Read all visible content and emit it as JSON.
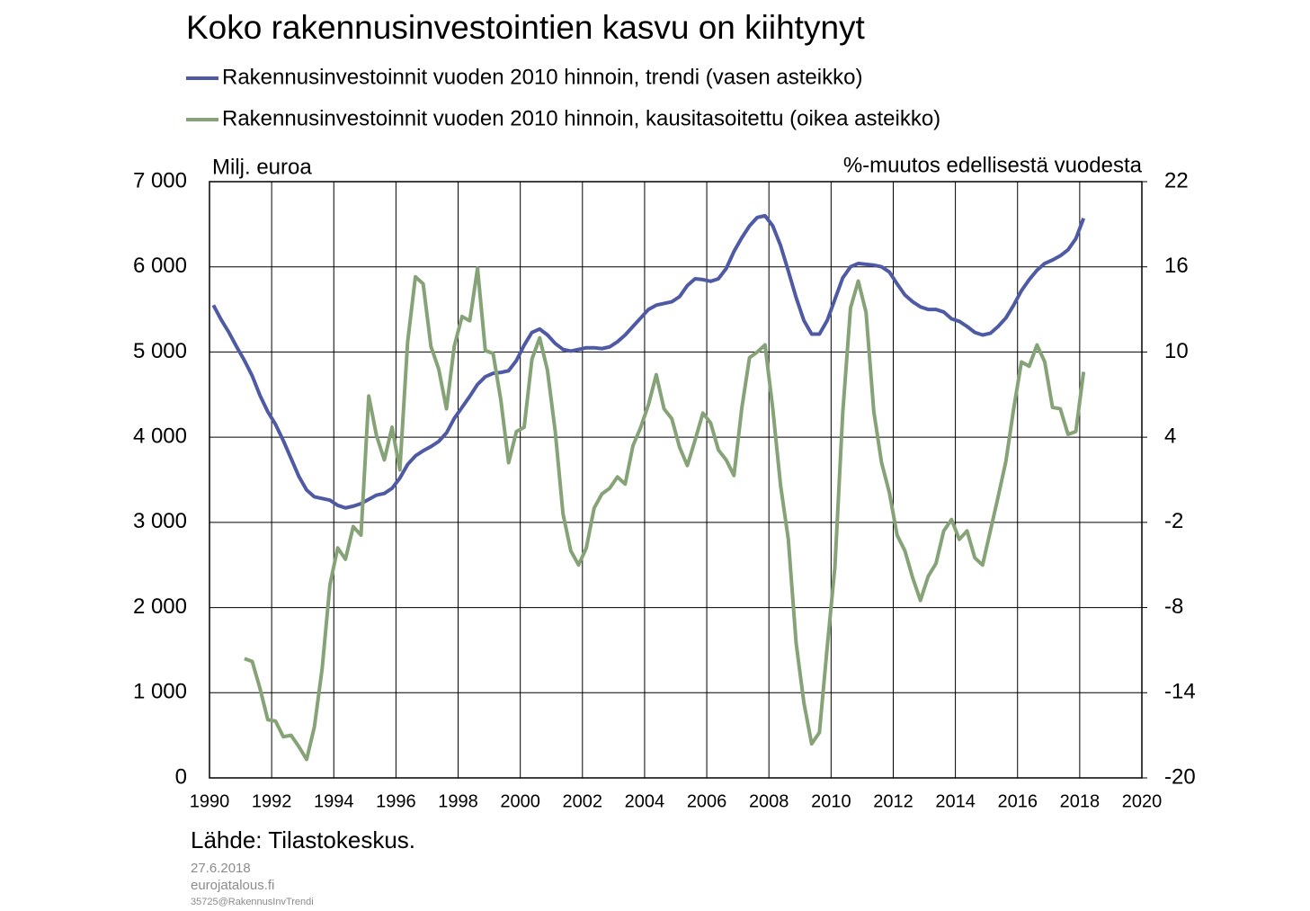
{
  "chart_data": {
    "type": "line",
    "title": "Koko rakennusinvestointien kasvu on kiihtynyt",
    "y_label": "Milj. euroa",
    "y2_label": "%-muutos edellisestä vuodesta",
    "source": "Lähde: Tilastokeskus.",
    "footer": [
      "27.6.2018",
      "eurojatalous.fi",
      "35725@RakennusInvTrendi"
    ],
    "xlim": [
      1990,
      2020
    ],
    "xticks": [
      1990,
      1992,
      1994,
      1996,
      1998,
      2000,
      2002,
      2004,
      2006,
      2008,
      2010,
      2012,
      2014,
      2016,
      2018,
      2020
    ],
    "ylim": [
      0,
      7000
    ],
    "yticks": [
      0,
      {
        "value": 1000,
        "label": "1 000"
      },
      {
        "value": 2000,
        "label": "2 000"
      },
      {
        "value": 3000,
        "label": "3 000"
      },
      {
        "value": 4000,
        "label": "4 000"
      },
      {
        "value": 5000,
        "label": "5 000"
      },
      {
        "value": 6000,
        "label": "6 000"
      },
      {
        "value": 7000,
        "label": "7 000"
      }
    ],
    "y2lim": [
      -20,
      22
    ],
    "y2ticks": [
      -20,
      -14,
      -8,
      -2,
      4,
      10,
      16,
      22
    ],
    "grid": true,
    "x": [
      1990.125,
      1990.375,
      1990.625,
      1990.875,
      1991.125,
      1991.375,
      1991.625,
      1991.875,
      1992.125,
      1992.375,
      1992.625,
      1992.875,
      1993.125,
      1993.375,
      1993.625,
      1993.875,
      1994.125,
      1994.375,
      1994.625,
      1994.875,
      1995.125,
      1995.375,
      1995.625,
      1995.875,
      1996.125,
      1996.375,
      1996.625,
      1996.875,
      1997.125,
      1997.375,
      1997.625,
      1997.875,
      1998.125,
      1998.375,
      1998.625,
      1998.875,
      1999.125,
      1999.375,
      1999.625,
      1999.875,
      2000.125,
      2000.375,
      2000.625,
      2000.875,
      2001.125,
      2001.375,
      2001.625,
      2001.875,
      2002.125,
      2002.375,
      2002.625,
      2002.875,
      2003.125,
      2003.375,
      2003.625,
      2003.875,
      2004.125,
      2004.375,
      2004.625,
      2004.875,
      2005.125,
      2005.375,
      2005.625,
      2005.875,
      2006.125,
      2006.375,
      2006.625,
      2006.875,
      2007.125,
      2007.375,
      2007.625,
      2007.875,
      2008.125,
      2008.375,
      2008.625,
      2008.875,
      2009.125,
      2009.375,
      2009.625,
      2009.875,
      2010.125,
      2010.375,
      2010.625,
      2010.875,
      2011.125,
      2011.375,
      2011.625,
      2011.875,
      2012.125,
      2012.375,
      2012.625,
      2012.875,
      2013.125,
      2013.375,
      2013.625,
      2013.875,
      2014.125,
      2014.375,
      2014.625,
      2014.875,
      2015.125,
      2015.375,
      2015.625,
      2015.875,
      2016.125,
      2016.375,
      2016.625,
      2016.875,
      2017.125,
      2017.375,
      2017.625,
      2017.875,
      2018.125
    ],
    "series": [
      {
        "name": "Rakennusinvestoinnit vuoden 2010 hinnoin, trendi (vasen asteikko)",
        "color": "#4f5aa5",
        "axis": "y",
        "values": [
          5550,
          5380,
          5230,
          5060,
          4900,
          4720,
          4490,
          4300,
          4150,
          3960,
          3750,
          3540,
          3380,
          3300,
          3280,
          3260,
          3200,
          3170,
          3190,
          3220,
          3270,
          3320,
          3340,
          3400,
          3520,
          3680,
          3780,
          3840,
          3890,
          3950,
          4050,
          4220,
          4350,
          4480,
          4620,
          4710,
          4750,
          4760,
          4780,
          4900,
          5080,
          5230,
          5270,
          5200,
          5100,
          5030,
          5010,
          5030,
          5050,
          5050,
          5040,
          5060,
          5120,
          5200,
          5300,
          5400,
          5500,
          5550,
          5570,
          5590,
          5650,
          5780,
          5860,
          5850,
          5830,
          5860,
          5980,
          6180,
          6340,
          6480,
          6580,
          6600,
          6480,
          6250,
          5950,
          5640,
          5370,
          5210,
          5210,
          5370,
          5620,
          5870,
          6000,
          6040,
          6030,
          6020,
          6000,
          5940,
          5800,
          5670,
          5590,
          5530,
          5500,
          5500,
          5470,
          5390,
          5360,
          5300,
          5230,
          5200,
          5220,
          5300,
          5400,
          5550,
          5720,
          5850,
          5960,
          6040,
          6080,
          6130,
          6200,
          6330,
          6570
        ]
      },
      {
        "name": "Rakennusinvestoinnit vuoden 2010 hinnoin, kausitasoitettu (oikea asteikko)",
        "color": "#86a377",
        "axis": "y2",
        "values": [
          null,
          null,
          null,
          null,
          -11.6,
          -11.8,
          -13.7,
          -15.9,
          -16.0,
          -17.1,
          -17.0,
          -17.8,
          -18.7,
          -16.4,
          -12.3,
          -6.4,
          -3.8,
          -4.6,
          -2.3,
          -2.9,
          6.9,
          4.1,
          2.4,
          4.7,
          1.7,
          10.7,
          15.3,
          14.8,
          10.4,
          8.8,
          6.0,
          10.4,
          12.5,
          12.2,
          15.9,
          10.1,
          9.9,
          6.6,
          2.2,
          4.4,
          4.7,
          9.5,
          11.0,
          8.7,
          4.4,
          -1.4,
          -4.0,
          -5.0,
          -3.8,
          -1.0,
          0.0,
          0.4,
          1.2,
          0.7,
          3.4,
          4.7,
          6.3,
          8.4,
          6.0,
          5.3,
          3.3,
          2.0,
          3.8,
          5.7,
          5.0,
          3.1,
          2.4,
          1.3,
          6.0,
          9.6,
          10.0,
          10.5,
          6.0,
          0.6,
          -3.2,
          -10.5,
          -14.7,
          -17.6,
          -16.8,
          -10.8,
          -5.1,
          5.7,
          13.1,
          15.0,
          12.8,
          5.8,
          2.2,
          0.1,
          -2.9,
          -4.0,
          -5.9,
          -7.5,
          -5.8,
          -4.9,
          -2.6,
          -1.8,
          -3.2,
          -2.6,
          -4.5,
          -5.0,
          -2.6,
          -0.2,
          2.3,
          6.0,
          9.3,
          9.0,
          10.5,
          9.3,
          6.1,
          6.0,
          4.2,
          4.4,
          8.6
        ]
      }
    ]
  }
}
